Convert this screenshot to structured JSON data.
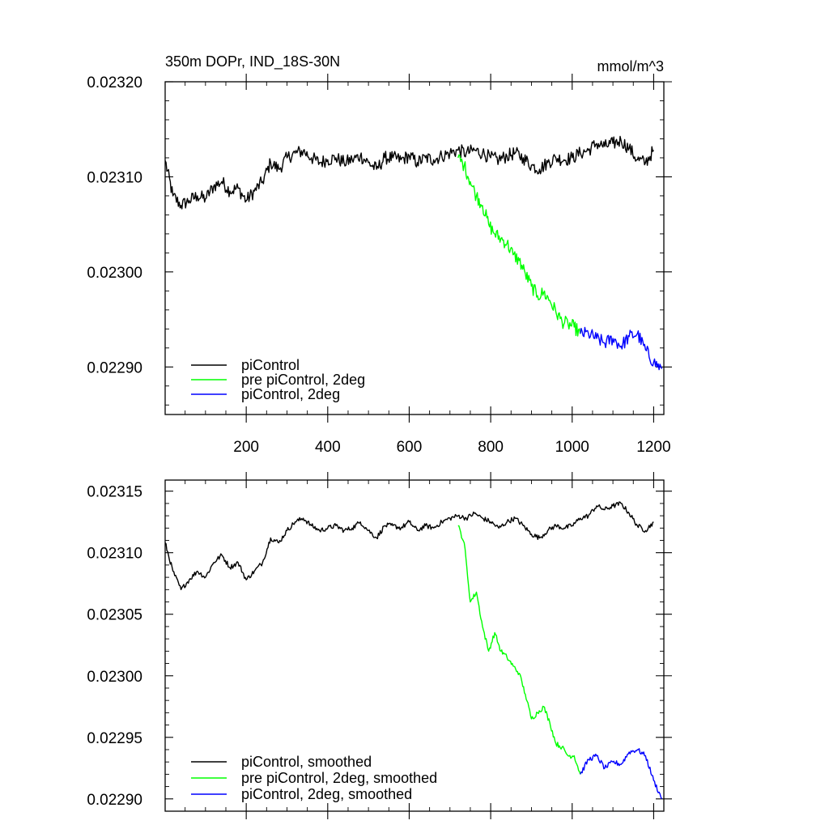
{
  "chart_data": [
    {
      "type": "line",
      "title": "350m DOPr, IND_18S-30N",
      "units": "mmol/m^3",
      "xlim": [
        1,
        1225
      ],
      "ylim": [
        0.02285,
        0.0232
      ],
      "xticks": [
        200,
        400,
        600,
        800,
        1000,
        1200
      ],
      "xtick_labels": [
        "200",
        "400",
        "600",
        "800",
        "1000",
        "1200"
      ],
      "yticks": [
        0.0229,
        0.023,
        0.0231,
        0.0232
      ],
      "ytick_labels": [
        "0.02290",
        "0.02300",
        "0.02310",
        "0.02320"
      ],
      "legend_position": "bottom-left",
      "series": [
        {
          "name": "piControl",
          "color": "#000000",
          "x": [
            1,
            20,
            40,
            60,
            80,
            100,
            120,
            140,
            160,
            180,
            200,
            220,
            240,
            260,
            280,
            300,
            320,
            340,
            360,
            380,
            400,
            420,
            440,
            460,
            480,
            500,
            520,
            540,
            560,
            580,
            600,
            620,
            640,
            660,
            680,
            700,
            720,
            740,
            760,
            780,
            800,
            820,
            840,
            860,
            880,
            900,
            920,
            940,
            960,
            980,
            1000,
            1020,
            1040,
            1060,
            1080,
            1100,
            1120,
            1140,
            1160,
            1180,
            1200
          ],
          "values": [
            0.023117,
            0.02308,
            0.02307,
            0.023075,
            0.02308,
            0.023077,
            0.02309,
            0.023095,
            0.023085,
            0.023088,
            0.023075,
            0.023085,
            0.023095,
            0.023115,
            0.023108,
            0.02312,
            0.023125,
            0.023127,
            0.02312,
            0.023115,
            0.023118,
            0.02312,
            0.023115,
            0.023118,
            0.023122,
            0.023115,
            0.023108,
            0.02312,
            0.02312,
            0.023118,
            0.023122,
            0.023115,
            0.02312,
            0.023118,
            0.023122,
            0.023125,
            0.023128,
            0.023125,
            0.023128,
            0.023125,
            0.02312,
            0.023118,
            0.023122,
            0.023125,
            0.02312,
            0.023112,
            0.023108,
            0.023115,
            0.02312,
            0.023118,
            0.02312,
            0.023125,
            0.023128,
            0.023135,
            0.023132,
            0.023135,
            0.023138,
            0.02313,
            0.023118,
            0.023115,
            0.023128
          ]
        },
        {
          "name": "pre piControl, 2deg",
          "color": "#00ff00",
          "x": [
            720,
            735,
            750,
            765,
            780,
            795,
            810,
            825,
            840,
            855,
            870,
            885,
            900,
            915,
            930,
            945,
            960,
            975,
            990,
            1005,
            1020
          ],
          "values": [
            0.02312,
            0.023112,
            0.023095,
            0.02308,
            0.02307,
            0.02305,
            0.02304,
            0.023035,
            0.02303,
            0.023018,
            0.023012,
            0.022998,
            0.022985,
            0.022975,
            0.022978,
            0.02297,
            0.022958,
            0.022948,
            0.022945,
            0.022942,
            0.022935
          ]
        },
        {
          "name": "piControl, 2deg",
          "color": "#0000ff",
          "x": [
            1020,
            1040,
            1060,
            1080,
            1100,
            1120,
            1140,
            1160,
            1180,
            1200,
            1220
          ],
          "values": [
            0.022935,
            0.022935,
            0.02293,
            0.022925,
            0.02293,
            0.022922,
            0.022932,
            0.022935,
            0.022918,
            0.022905,
            0.022898
          ]
        }
      ]
    },
    {
      "type": "line",
      "xlim": [
        1,
        1225
      ],
      "ylim": [
        0.02289,
        0.023159
      ],
      "xticks": [
        200,
        400,
        600,
        800,
        1000,
        1200
      ],
      "yticks": [
        0.0229,
        0.02295,
        0.023,
        0.02305,
        0.0231,
        0.02315
      ],
      "ytick_labels": [
        "0.02290",
        "0.02295",
        "0.02300",
        "0.02305",
        "0.02310",
        "0.02315"
      ],
      "legend_position": "bottom-left",
      "series": [
        {
          "name": "piControl, smoothed",
          "color": "#000000",
          "x": [
            1,
            20,
            40,
            60,
            80,
            100,
            120,
            140,
            160,
            180,
            200,
            220,
            240,
            260,
            280,
            300,
            320,
            340,
            360,
            380,
            400,
            420,
            440,
            460,
            480,
            500,
            520,
            540,
            560,
            580,
            600,
            620,
            640,
            660,
            680,
            700,
            720,
            740,
            760,
            780,
            800,
            820,
            840,
            860,
            880,
            900,
            920,
            940,
            960,
            980,
            1000,
            1020,
            1040,
            1060,
            1080,
            1100,
            1120,
            1140,
            1160,
            1180,
            1200
          ],
          "values": [
            0.023108,
            0.023085,
            0.02307,
            0.023078,
            0.023085,
            0.02308,
            0.023092,
            0.023098,
            0.023088,
            0.023092,
            0.023078,
            0.023085,
            0.023092,
            0.023112,
            0.023108,
            0.023118,
            0.023125,
            0.023128,
            0.023122,
            0.023118,
            0.02312,
            0.023122,
            0.023118,
            0.02312,
            0.023125,
            0.023118,
            0.023112,
            0.023122,
            0.023122,
            0.02312,
            0.023125,
            0.023118,
            0.023122,
            0.02312,
            0.023125,
            0.023128,
            0.02313,
            0.023128,
            0.023132,
            0.023128,
            0.023125,
            0.02312,
            0.023125,
            0.023128,
            0.023122,
            0.023115,
            0.023112,
            0.023118,
            0.023122,
            0.02312,
            0.023122,
            0.023128,
            0.02313,
            0.023138,
            0.023135,
            0.023138,
            0.02314,
            0.023132,
            0.023122,
            0.023118,
            0.023125
          ]
        },
        {
          "name": "pre piControl, 2deg, smoothed",
          "color": "#00ff00",
          "x": [
            720,
            735,
            750,
            765,
            780,
            795,
            810,
            825,
            840,
            855,
            870,
            885,
            900,
            915,
            930,
            945,
            960,
            975,
            990,
            1005,
            1020
          ],
          "values": [
            0.023122,
            0.023108,
            0.02306,
            0.023068,
            0.02304,
            0.02302,
            0.023035,
            0.02302,
            0.023015,
            0.023008,
            0.023002,
            0.022985,
            0.022965,
            0.02297,
            0.022975,
            0.022962,
            0.022945,
            0.022942,
            0.022935,
            0.022935,
            0.02292
          ]
        },
        {
          "name": "piControl, 2deg, smoothed",
          "color": "#0000ff",
          "x": [
            1020,
            1040,
            1060,
            1080,
            1100,
            1120,
            1140,
            1160,
            1180,
            1200,
            1220
          ],
          "values": [
            0.02292,
            0.022932,
            0.022935,
            0.022925,
            0.02293,
            0.022928,
            0.022938,
            0.02294,
            0.022935,
            0.022915,
            0.0229
          ]
        }
      ]
    }
  ]
}
